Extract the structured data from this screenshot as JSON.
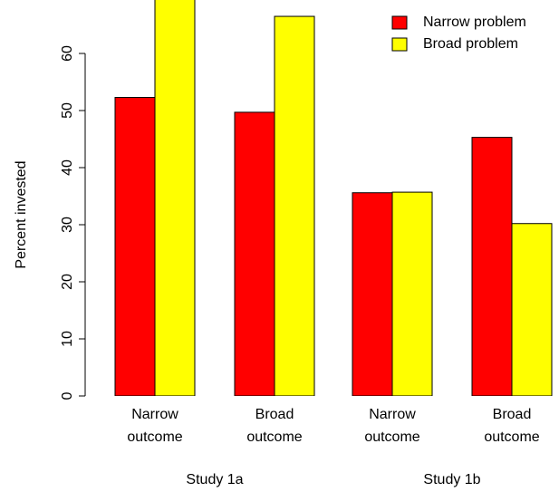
{
  "chart_data": {
    "type": "bar",
    "ylabel": "Percent invested",
    "ylim": [
      0,
      70
    ],
    "yticks": [
      0,
      10,
      20,
      30,
      40,
      50,
      60
    ],
    "categories": [
      {
        "lines": [
          "Narrow",
          "outcome"
        ]
      },
      {
        "lines": [
          "Broad",
          "outcome"
        ]
      },
      {
        "lines": [
          "Narrow",
          "outcome"
        ]
      },
      {
        "lines": [
          "Broad",
          "outcome"
        ]
      }
    ],
    "groups": [
      {
        "label": "Study 1a",
        "categories": [
          0,
          1
        ]
      },
      {
        "label": "Study 1b",
        "categories": [
          2,
          3
        ]
      }
    ],
    "series": [
      {
        "name": "Narrow problem",
        "color": "#ff0000",
        "values": [
          52.3,
          49.7,
          35.6,
          45.3
        ]
      },
      {
        "name": "Broad problem",
        "color": "#ffff00",
        "values": [
          70.5,
          66.5,
          35.7,
          30.2
        ]
      }
    ],
    "legend_position": "top-right",
    "grid": false
  }
}
